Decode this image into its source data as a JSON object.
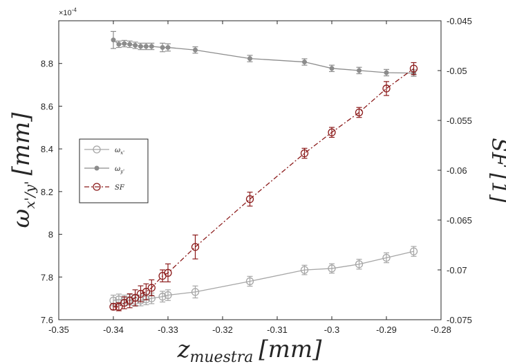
{
  "chart_data": {
    "type": "line",
    "x": [
      -0.34,
      -0.339,
      -0.338,
      -0.337,
      -0.336,
      -0.335,
      -0.334,
      -0.333,
      -0.331,
      -0.33,
      -0.325,
      -0.315,
      -0.305,
      -0.3,
      -0.295,
      -0.29,
      -0.285
    ],
    "xlim": [
      -0.35,
      -0.28
    ],
    "x_ticks": [
      "-0.35",
      "-0.34",
      "-0.33",
      "-0.32",
      "-0.31",
      "-0.3",
      "-0.29",
      "-0.28"
    ],
    "ylim_left": [
      7.6,
      9.0
    ],
    "left_ticks": [
      "7.6",
      "7.8",
      "8",
      "8.2",
      "8.4",
      "8.6",
      "8.8"
    ],
    "left_exponent": "×10",
    "left_exponent_power": "-4",
    "ylim_right": [
      -0.075,
      -0.045
    ],
    "right_ticks": [
      "-0.075",
      "-0.07",
      "-0.065",
      "-0.06",
      "-0.055",
      "-0.05",
      "-0.045"
    ],
    "xlabel": {
      "main": "z",
      "sub": "muestra",
      "unit": "[mm]"
    },
    "ylabel_left": {
      "main": "ω",
      "sub": "x'/y'",
      "unit": "[mm]"
    },
    "ylabel_right": "SF [1]",
    "grid": false,
    "legend_position": "left-middle",
    "series": [
      {
        "name": "ω",
        "name_sub": "x'",
        "axis": "left",
        "color": "#a6a6a6",
        "marker": "open-circle",
        "line": "solid",
        "y": [
          7.69,
          7.695,
          7.69,
          7.693,
          7.688,
          7.69,
          7.695,
          7.7,
          7.708,
          7.715,
          7.73,
          7.78,
          7.833,
          7.84,
          7.86,
          7.89,
          7.92
        ],
        "err": [
          0.025,
          0.025,
          0.025,
          0.025,
          0.025,
          0.025,
          0.025,
          0.025,
          0.025,
          0.025,
          0.028,
          0.023,
          0.022,
          0.022,
          0.023,
          0.023,
          0.023
        ]
      },
      {
        "name": "ω",
        "name_sub": "y'",
        "axis": "left",
        "color": "#8c8c8c",
        "marker": "filled-dot",
        "line": "solid",
        "y": [
          8.91,
          8.89,
          8.893,
          8.89,
          8.885,
          8.88,
          8.88,
          8.88,
          8.875,
          8.875,
          8.863,
          8.823,
          8.807,
          8.777,
          8.767,
          8.757,
          8.755
        ],
        "err": [
          0.04,
          0.015,
          0.015,
          0.015,
          0.015,
          0.015,
          0.015,
          0.015,
          0.02,
          0.017,
          0.015,
          0.015,
          0.015,
          0.015,
          0.015,
          0.015,
          0.015
        ]
      },
      {
        "name": "SF",
        "axis": "right",
        "color": "#8b1a1a",
        "marker": "open-circle",
        "line": "dash-dot",
        "y": [
          -0.0737,
          -0.0737,
          -0.0733,
          -0.0731,
          -0.0728,
          -0.0724,
          -0.0722,
          -0.0718,
          -0.0706,
          -0.0703,
          -0.0677,
          -0.0629,
          -0.0583,
          -0.0562,
          -0.0542,
          -0.0518,
          -0.0498
        ],
        "err": [
          0.0003,
          0.0004,
          0.0006,
          0.0007,
          0.0008,
          0.0008,
          0.0008,
          0.0008,
          0.0006,
          0.0009,
          0.0012,
          0.0007,
          0.0005,
          0.0005,
          0.0005,
          0.0007,
          0.0006
        ]
      }
    ]
  }
}
